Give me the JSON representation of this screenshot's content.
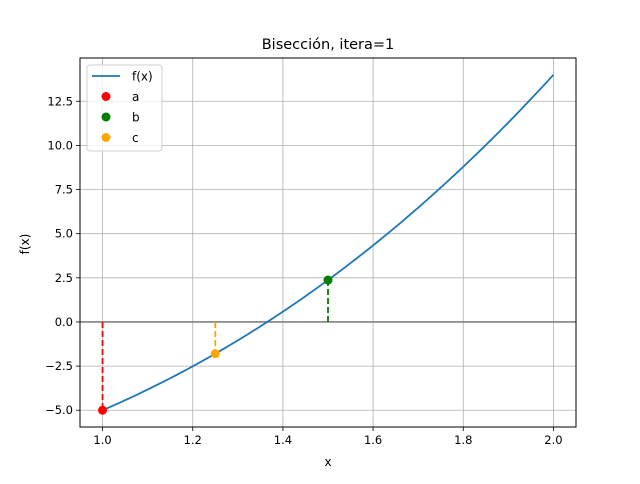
{
  "chart_data": {
    "type": "line",
    "title": "Bisección, itera=1",
    "xlabel": "x",
    "ylabel": "f(x)",
    "xlim": [
      0.95,
      2.05
    ],
    "ylim": [
      -5.95,
      14.95
    ],
    "xticks": [
      1.0,
      1.2,
      1.4,
      1.6,
      1.8,
      2.0
    ],
    "xtick_labels": [
      "1.0",
      "1.2",
      "1.4",
      "1.6",
      "1.8",
      "2.0"
    ],
    "yticks": [
      -5.0,
      -2.5,
      0.0,
      2.5,
      5.0,
      7.5,
      10.0,
      12.5
    ],
    "ytick_labels": [
      "−5.0",
      "−2.5",
      "0.0",
      "2.5",
      "5.0",
      "7.5",
      "10.0",
      "12.5"
    ],
    "grid": true,
    "legend_position": "upper left",
    "function": "x^3 + 4x^2 - 10",
    "series": [
      {
        "name": "f(x)",
        "type": "line",
        "color": "#1f77b4",
        "x": [
          1.0,
          1.1,
          1.2,
          1.3,
          1.4,
          1.5,
          1.6,
          1.7,
          1.8,
          1.9,
          2.0
        ],
        "y": [
          -5.0,
          -3.829,
          -2.512,
          -1.043,
          0.584,
          2.375,
          4.336,
          6.473,
          8.792,
          11.299,
          14.0
        ]
      },
      {
        "name": "a",
        "type": "point",
        "color": "#ff0000",
        "x": [
          1.0
        ],
        "y": [
          -5.0
        ]
      },
      {
        "name": "b",
        "type": "point",
        "color": "#008000",
        "x": [
          1.5
        ],
        "y": [
          2.375
        ]
      },
      {
        "name": "c",
        "type": "point",
        "color": "#ffa500",
        "x": [
          1.25
        ],
        "y": [
          -1.797
        ]
      }
    ],
    "annotations": [
      {
        "type": "vline-dashed",
        "x": 1.0,
        "from": 0,
        "to": -5.0,
        "color": "#ff0000"
      },
      {
        "type": "vline-dashed",
        "x": 1.5,
        "from": 0,
        "to": 2.375,
        "color": "#008000"
      },
      {
        "type": "vline-dashed",
        "x": 1.25,
        "from": 0,
        "to": -1.797,
        "color": "#ffa500"
      },
      {
        "type": "hline",
        "y": 0,
        "color": "#808080"
      }
    ]
  }
}
